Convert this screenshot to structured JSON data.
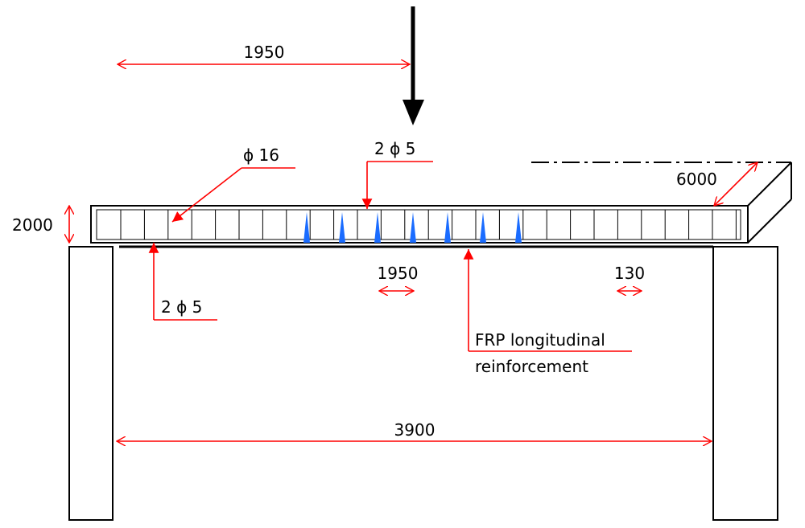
{
  "colors": {
    "annotation": "#ff0000",
    "crack": "#1a6cff",
    "structure": "#000000",
    "background": "#ffffff"
  },
  "labels": {
    "load_position": "1950",
    "top_bars": "2 ϕ 5",
    "longitudinal_bar": "ϕ 16",
    "slab_width": "6000",
    "slab_depth": "2000",
    "bottom_bars": "2 ϕ 5",
    "stirrup_spacing": "1950",
    "stirrup_spacing_end": "130",
    "frp_line1": "FRP longitudinal",
    "frp_line2": "reinforcement",
    "span": "3900"
  },
  "elements": {
    "load_arrow": "load-arrow",
    "cracks": "crack-marks",
    "stirrups": "stirrup-lines"
  }
}
